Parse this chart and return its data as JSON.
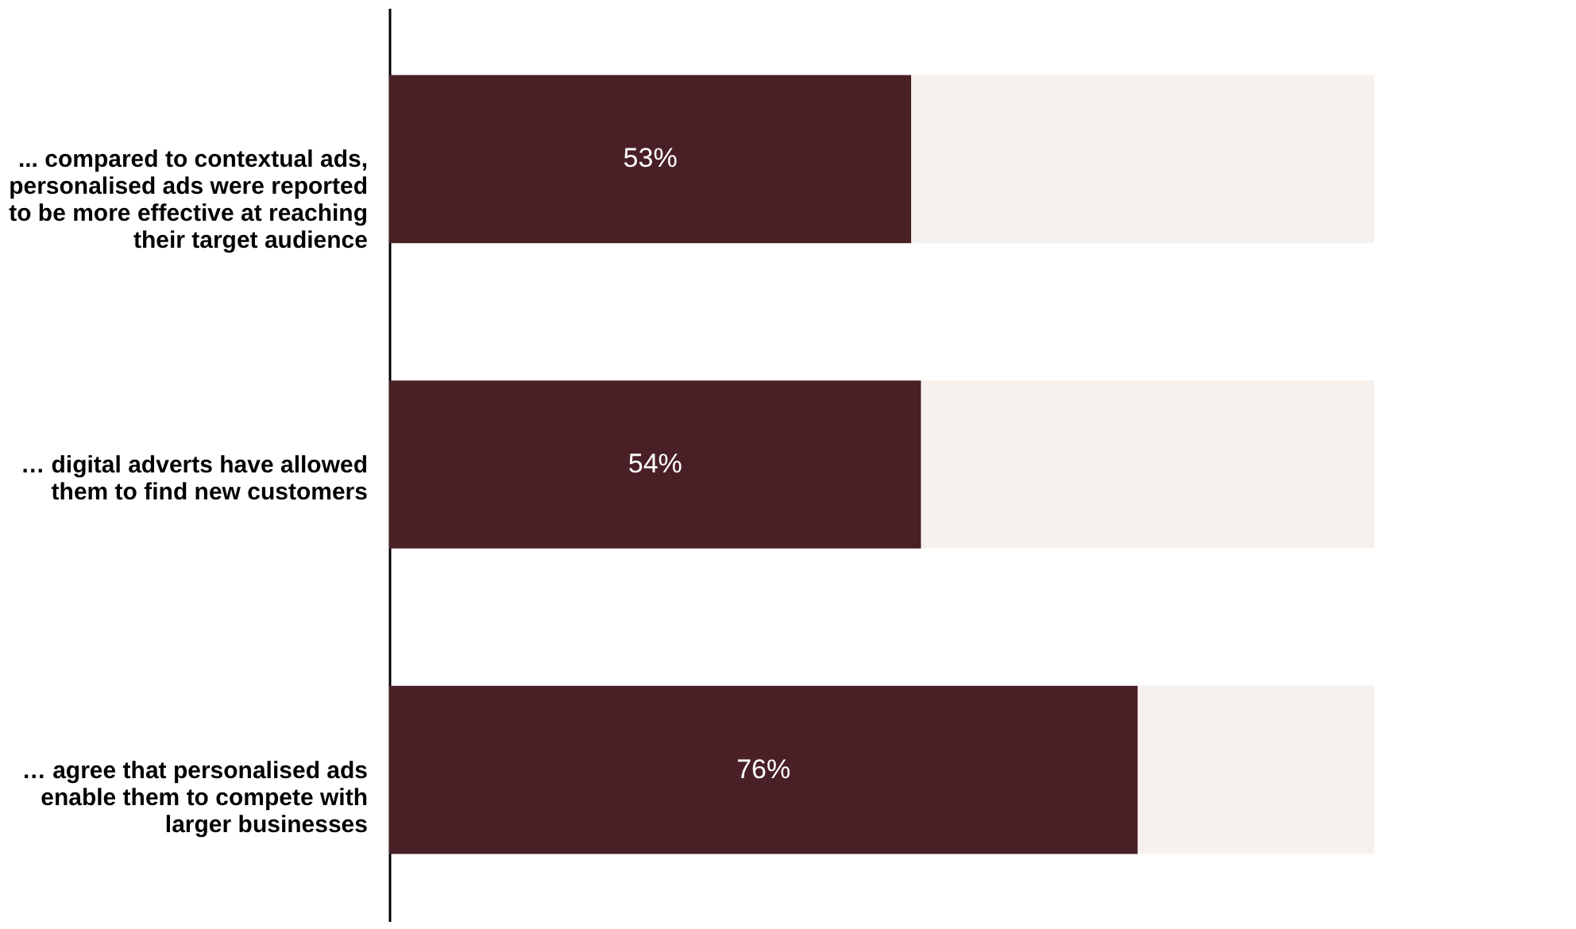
{
  "chart_data": {
    "type": "bar",
    "orientation": "horizontal",
    "stacked": true,
    "categories": [
      "... compared to contextual ads,\npersonalised ads were reported\nto be more effective at reaching\ntheir target audience",
      "… digital adverts have allowed\nthem to find new customers",
      "… agree that personalised ads\nenable them to compete with\nlarger businesses"
    ],
    "series": [
      {
        "color": "#4a2027",
        "values": [
          53,
          54,
          76
        ],
        "value_labels": [
          "53%",
          "54%",
          "76%"
        ]
      },
      {
        "color": "#f7f1ed",
        "values": [
          47,
          46,
          24
        ]
      }
    ],
    "xlim": [
      0,
      100
    ],
    "tick_labels": "y",
    "grid": false
  }
}
